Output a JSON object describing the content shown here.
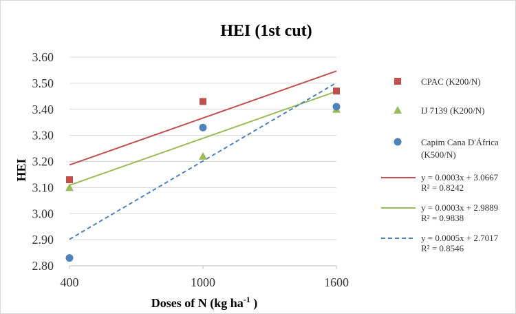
{
  "chart_data": {
    "type": "scatter",
    "title": "HEI (1st cut)",
    "xlabel": {
      "base": "Doses of N (kg ha",
      "sup": "-1",
      "tail": " )"
    },
    "ylabel": "HEI",
    "x_ticks": [
      400,
      1000,
      1600
    ],
    "y_ticks": [
      "2.80",
      "2.90",
      "3.00",
      "3.10",
      "3.20",
      "3.30",
      "3.40",
      "3.50",
      "3.60"
    ],
    "xlim": [
      400,
      1600
    ],
    "ylim": [
      2.8,
      3.6
    ],
    "grid": "horizontal",
    "legend_position": "right",
    "series": [
      {
        "name": "CPAC (K200/N)",
        "marker": "square",
        "color": "#c0504d",
        "x": [
          400,
          1000,
          1600
        ],
        "y": [
          3.13,
          3.43,
          3.47
        ]
      },
      {
        "name": "IJ 7139 (K200/N)",
        "marker": "triangle",
        "color": "#9bbb59",
        "x": [
          400,
          1000,
          1600
        ],
        "y": [
          3.1,
          3.22,
          3.4
        ]
      },
      {
        "name_lines": [
          "Capim Cana D'África",
          "(K500/N)"
        ],
        "marker": "circle",
        "color": "#4f81bd",
        "x": [
          400,
          1000,
          1600
        ],
        "y": [
          2.83,
          3.33,
          3.41
        ]
      }
    ],
    "trendlines": [
      {
        "equation": "y = 0.0003x + 3.0667",
        "r2": "R² = 0.8242",
        "color": "#c0504d",
        "dash": "solid",
        "slope": 0.0003,
        "intercept": 3.0667
      },
      {
        "equation": "y = 0.0003x + 2.9889",
        "r2": "R² = 0.9838",
        "color": "#9bbb59",
        "dash": "solid",
        "slope": 0.0003,
        "intercept": 2.9889
      },
      {
        "equation": "y = 0.0005x + 2.7017",
        "r2": "R² = 0.8546",
        "color": "#4f81bd",
        "dash": "dashed",
        "slope": 0.0005,
        "intercept": 2.7017
      }
    ]
  }
}
